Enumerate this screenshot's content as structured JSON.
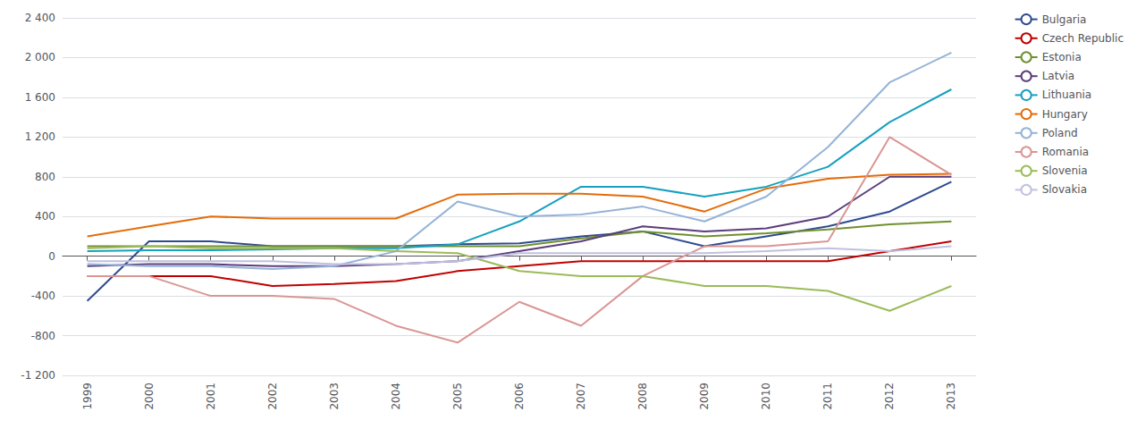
{
  "chart_data": {
    "type": "line",
    "x": [
      1999,
      2000,
      2001,
      2002,
      2003,
      2004,
      2005,
      2006,
      2007,
      2008,
      2009,
      2010,
      2011,
      2012,
      2013
    ],
    "xlim": [
      1998.6,
      2013.4
    ],
    "xticks": [
      1999,
      2000,
      2001,
      2002,
      2003,
      2004,
      2005,
      2006,
      2007,
      2008,
      2009,
      2010,
      2011,
      2012,
      2013
    ],
    "series": [
      {
        "name": "Bulgaria",
        "color": "#2E4B8F",
        "values": [
          -450,
          150,
          150,
          100,
          100,
          100,
          120,
          130,
          200,
          250,
          100,
          200,
          300,
          450,
          750
        ]
      },
      {
        "name": "Czech Republic",
        "color": "#C00000",
        "values": [
          -200,
          -200,
          -200,
          -300,
          -280,
          -250,
          -150,
          -100,
          -50,
          -50,
          -50,
          -50,
          -50,
          50,
          150
        ]
      },
      {
        "name": "Estonia",
        "color": "#70902E",
        "values": [
          100,
          100,
          100,
          100,
          100,
          100,
          100,
          100,
          180,
          250,
          200,
          230,
          270,
          320,
          350
        ]
      },
      {
        "name": "Latvia",
        "color": "#5B3D7B",
        "values": [
          -100,
          -80,
          -80,
          -100,
          -100,
          -80,
          -50,
          50,
          150,
          300,
          250,
          280,
          400,
          800,
          800
        ]
      },
      {
        "name": "Lithuania",
        "color": "#17A0C0",
        "values": [
          50,
          60,
          60,
          70,
          80,
          80,
          120,
          350,
          700,
          700,
          600,
          700,
          900,
          1350,
          1680
        ]
      },
      {
        "name": "Hungary",
        "color": "#E46C0A",
        "values": [
          200,
          300,
          400,
          380,
          380,
          380,
          620,
          630,
          630,
          600,
          450,
          680,
          780,
          820,
          830
        ]
      },
      {
        "name": "Poland",
        "color": "#95B3D7",
        "values": [
          -80,
          -100,
          -100,
          -130,
          -100,
          50,
          550,
          400,
          420,
          500,
          350,
          600,
          1100,
          1750,
          2050
        ]
      },
      {
        "name": "Romania",
        "color": "#D99694",
        "values": [
          -200,
          -200,
          -400,
          -400,
          -430,
          -700,
          -870,
          -460,
          -700,
          -200,
          100,
          100,
          150,
          1200,
          820
        ]
      },
      {
        "name": "Slovenia",
        "color": "#9BBB59",
        "values": [
          80,
          100,
          80,
          80,
          80,
          50,
          30,
          -150,
          -200,
          -200,
          -300,
          -300,
          -350,
          -550,
          -300
        ]
      },
      {
        "name": "Slovakia",
        "color": "#C0C0E0",
        "values": [
          -50,
          -50,
          -50,
          -50,
          -80,
          -80,
          -50,
          30,
          30,
          30,
          30,
          50,
          80,
          50,
          100
        ]
      }
    ],
    "ylim": [
      -1200,
      2400
    ],
    "yticks": [
      {
        "value": -1200,
        "label": "-1 200"
      },
      -800,
      -400,
      0,
      400,
      800,
      {
        "value": 1200,
        "label": "1 200"
      },
      {
        "value": 1600,
        "label": "1 600"
      },
      {
        "value": 2000,
        "label": "2 000"
      },
      {
        "value": 2400,
        "label": "2 400"
      }
    ],
    "grid": true,
    "legend": "right"
  }
}
